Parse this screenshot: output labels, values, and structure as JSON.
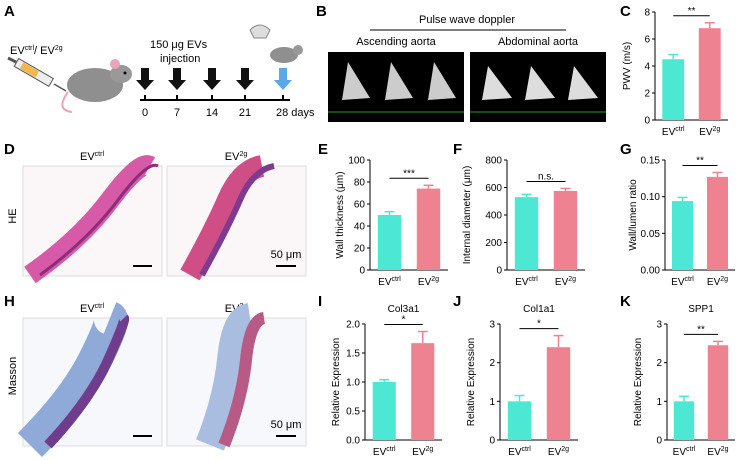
{
  "panel_labels": [
    "A",
    "B",
    "C",
    "D",
    "E",
    "F",
    "G",
    "H",
    "I",
    "J",
    "K"
  ],
  "schematic": {
    "groups": [
      "EV",
      "ctrl",
      "/ EV",
      "2g"
    ],
    "dose": "150 μg EVs",
    "route": "injection",
    "timeline": [
      "0",
      "7",
      "14",
      "21",
      "28 days"
    ]
  },
  "doppler": {
    "title": "Pulse wave doppler",
    "sites": [
      "Ascending aorta",
      "Abdominal aorta"
    ]
  },
  "he_panel": {
    "stain": "HE",
    "columns": [
      [
        "EV",
        "ctrl"
      ],
      [
        "EV",
        "2g"
      ]
    ],
    "scale_bar": "50 μm"
  },
  "masson_panel": {
    "stain": "Masson",
    "columns": [
      [
        "EV",
        "ctrl"
      ],
      [
        "EV",
        "2g"
      ]
    ],
    "scale_bar": "50 μm"
  },
  "chart_data": [
    {
      "type": "bar",
      "ylabel": "PWV (m/s)",
      "categories": [
        [
          "EV",
          "ctrl"
        ],
        [
          "EV",
          "2g"
        ]
      ],
      "values": [
        4.5,
        6.8
      ],
      "errors": [
        0.35,
        0.4
      ],
      "colors": [
        "#4de8d4",
        "#ef8290"
      ],
      "ylim": [
        0,
        8
      ],
      "yticks": [
        0,
        2,
        4,
        6,
        8
      ],
      "annotation": "**"
    },
    {
      "type": "bar",
      "ylabel": "Wall thickness (μm)",
      "categories": [
        [
          "EV",
          "ctrl"
        ],
        [
          "EV",
          "2g"
        ]
      ],
      "values": [
        50,
        74
      ],
      "errors": [
        3,
        3
      ],
      "colors": [
        "#4de8d4",
        "#ef8290"
      ],
      "ylim": [
        0,
        100
      ],
      "yticks": [
        0,
        20,
        40,
        60,
        80,
        100
      ],
      "annotation": "***"
    },
    {
      "type": "bar",
      "ylabel": "Internal diameter (μm)",
      "categories": [
        [
          "EV",
          "ctrl"
        ],
        [
          "EV",
          "2g"
        ]
      ],
      "values": [
        530,
        575
      ],
      "errors": [
        20,
        18
      ],
      "colors": [
        "#4de8d4",
        "#ef8290"
      ],
      "ylim": [
        0,
        800
      ],
      "yticks": [
        0,
        200,
        400,
        600,
        800
      ],
      "annotation": "n.s."
    },
    {
      "type": "bar",
      "ylabel": "Wall/lumen ratio",
      "categories": [
        [
          "EV",
          "ctrl"
        ],
        [
          "EV",
          "2g"
        ]
      ],
      "values": [
        0.094,
        0.127
      ],
      "errors": [
        0.005,
        0.006
      ],
      "colors": [
        "#4de8d4",
        "#ef8290"
      ],
      "ylim": [
        0,
        0.15
      ],
      "yticks": [
        {
          "value": 0,
          "label": "0.00"
        },
        0.05,
        {
          "value": 0.1,
          "label": "0.10"
        },
        0.15
      ],
      "annotation": "**"
    },
    {
      "type": "bar",
      "title": "Col3a1",
      "ylabel": "Relative Expression",
      "categories": [
        [
          "EV",
          "ctrl"
        ],
        [
          "EV",
          "2g"
        ]
      ],
      "values": [
        1.0,
        1.67
      ],
      "errors": [
        0.04,
        0.2
      ],
      "colors": [
        "#4de8d4",
        "#ef8290"
      ],
      "ylim": [
        0,
        2
      ],
      "yticks": [
        {
          "value": 0,
          "label": "0.0"
        },
        0.5,
        {
          "value": 1,
          "label": "1.0"
        },
        1.5,
        {
          "value": 2,
          "label": "2.0"
        }
      ],
      "annotation": "*"
    },
    {
      "type": "bar",
      "title": "Col1a1",
      "ylabel": "Relative Expression",
      "categories": [
        [
          "EV",
          "ctrl"
        ],
        [
          "EV",
          "2g"
        ]
      ],
      "values": [
        1.0,
        2.4
      ],
      "errors": [
        0.15,
        0.3
      ],
      "colors": [
        "#4de8d4",
        "#ef8290"
      ],
      "ylim": [
        0,
        3
      ],
      "yticks": [
        0,
        1,
        2,
        3
      ],
      "annotation": "*"
    },
    {
      "type": "bar",
      "title": "SPP1",
      "ylabel": "Relative Expression",
      "categories": [
        [
          "EV",
          "ctrl"
        ],
        [
          "EV",
          "2g"
        ]
      ],
      "values": [
        1.0,
        2.45
      ],
      "errors": [
        0.13,
        0.1
      ],
      "colors": [
        "#4de8d4",
        "#ef8290"
      ],
      "ylim": [
        0,
        3
      ],
      "yticks": [
        0,
        1,
        2,
        3
      ],
      "annotation": "**"
    }
  ]
}
